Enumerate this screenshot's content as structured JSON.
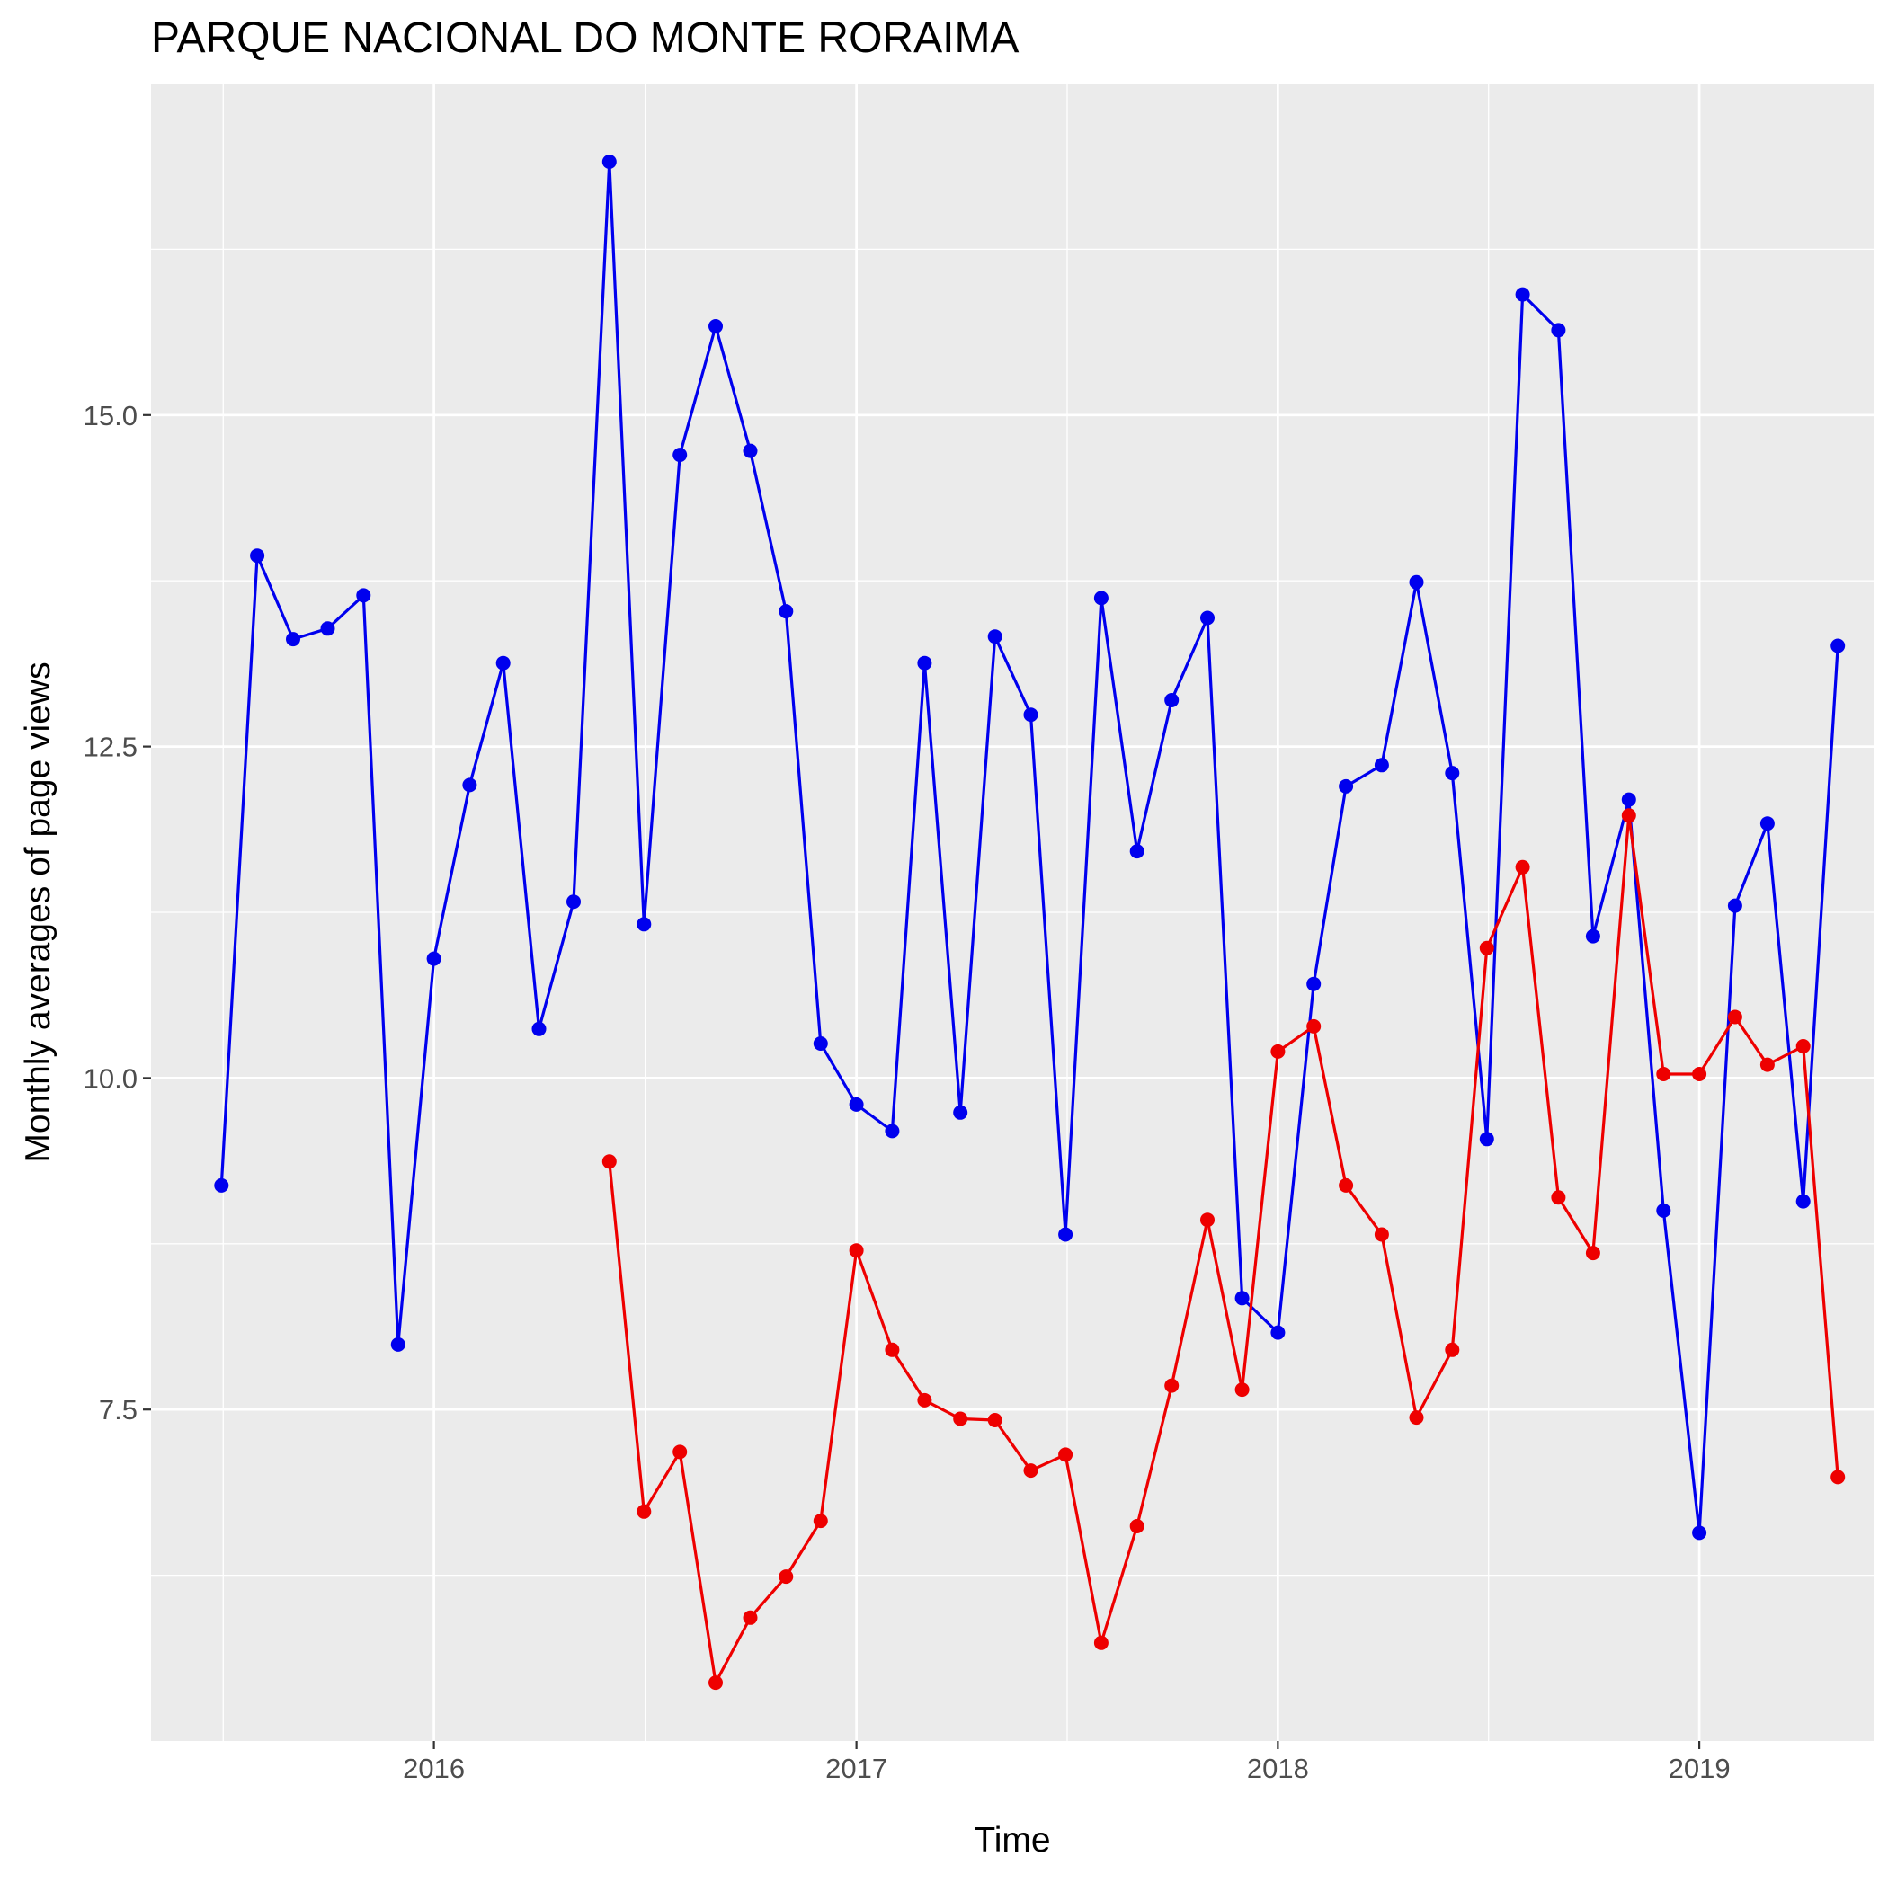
{
  "chart_data": {
    "type": "line",
    "title": "PARQUE NACIONAL DO MONTE RORAIMA",
    "xlabel": "Time",
    "ylabel": "Monthly averages of page views",
    "x_ticks": [
      "2016",
      "2017",
      "2018",
      "2019"
    ],
    "y_ticks": [
      "7.5",
      "10.0",
      "12.5",
      "15.0"
    ],
    "xlim": [
      "2015-05-01",
      "2019-06-01"
    ],
    "ylim": [
      5.0,
      17.5
    ],
    "grid": true,
    "legend": "none",
    "background": "#ebebeb",
    "series": [
      {
        "color": "#0000ee",
        "points": [
          [
            "2015-07",
            9.19
          ],
          [
            "2015-08",
            13.94
          ],
          [
            "2015-09",
            13.31
          ],
          [
            "2015-10",
            13.39
          ],
          [
            "2015-11",
            13.64
          ],
          [
            "2015-12",
            7.99
          ],
          [
            "2016-01",
            10.9
          ],
          [
            "2016-02",
            12.21
          ],
          [
            "2016-03",
            13.13
          ],
          [
            "2016-04",
            10.37
          ],
          [
            "2016-05",
            11.33
          ],
          [
            "2016-06",
            16.91
          ],
          [
            "2016-07",
            11.16
          ],
          [
            "2016-08",
            14.7
          ],
          [
            "2016-09",
            15.67
          ],
          [
            "2016-10",
            14.73
          ],
          [
            "2016-11",
            13.52
          ],
          [
            "2016-12",
            10.26
          ],
          [
            "2017-01",
            9.8
          ],
          [
            "2017-02",
            9.6
          ],
          [
            "2017-03",
            13.13
          ],
          [
            "2017-04",
            9.74
          ],
          [
            "2017-05",
            13.33
          ],
          [
            "2017-06",
            12.74
          ],
          [
            "2017-07",
            8.82
          ],
          [
            "2017-08",
            13.62
          ],
          [
            "2017-09",
            11.71
          ],
          [
            "2017-10",
            12.85
          ],
          [
            "2017-11",
            13.47
          ],
          [
            "2017-12",
            8.34
          ],
          [
            "2018-01",
            8.08
          ],
          [
            "2018-02",
            10.71
          ],
          [
            "2018-03",
            12.2
          ],
          [
            "2018-04",
            12.36
          ],
          [
            "2018-05",
            13.74
          ],
          [
            "2018-06",
            12.3
          ],
          [
            "2018-07",
            9.54
          ],
          [
            "2018-08",
            15.91
          ],
          [
            "2018-09",
            15.64
          ],
          [
            "2018-10",
            11.07
          ],
          [
            "2018-11",
            12.1
          ],
          [
            "2018-12",
            9.0
          ],
          [
            "2019-01",
            6.57
          ],
          [
            "2019-02",
            11.3
          ],
          [
            "2019-03",
            11.92
          ],
          [
            "2019-04",
            9.07
          ],
          [
            "2019-05",
            13.26
          ]
        ]
      },
      {
        "color": "#ee0000",
        "points": [
          [
            "2016-06",
            9.37
          ],
          [
            "2016-07",
            6.73
          ],
          [
            "2016-08",
            7.18
          ],
          [
            "2016-09",
            5.44
          ],
          [
            "2016-10",
            5.93
          ],
          [
            "2016-11",
            6.24
          ],
          [
            "2016-12",
            6.66
          ],
          [
            "2017-01",
            8.7
          ],
          [
            "2017-02",
            7.95
          ],
          [
            "2017-03",
            7.57
          ],
          [
            "2017-04",
            7.43
          ],
          [
            "2017-05",
            7.42
          ],
          [
            "2017-06",
            7.04
          ],
          [
            "2017-07",
            7.16
          ],
          [
            "2017-08",
            5.74
          ],
          [
            "2017-09",
            6.62
          ],
          [
            "2017-10",
            7.68
          ],
          [
            "2017-11",
            8.93
          ],
          [
            "2017-12",
            7.65
          ],
          [
            "2018-01",
            10.2
          ],
          [
            "2018-02",
            10.39
          ],
          [
            "2018-03",
            9.19
          ],
          [
            "2018-04",
            8.82
          ],
          [
            "2018-05",
            7.44
          ],
          [
            "2018-06",
            7.95
          ],
          [
            "2018-07",
            10.98
          ],
          [
            "2018-08",
            11.59
          ],
          [
            "2018-09",
            9.1
          ],
          [
            "2018-10",
            8.68
          ],
          [
            "2018-11",
            11.98
          ],
          [
            "2018-12",
            10.03
          ],
          [
            "2019-01",
            10.03
          ],
          [
            "2019-02",
            10.46
          ],
          [
            "2019-03",
            10.1
          ],
          [
            "2019-04",
            10.24
          ],
          [
            "2019-05",
            6.99
          ]
        ]
      }
    ]
  }
}
